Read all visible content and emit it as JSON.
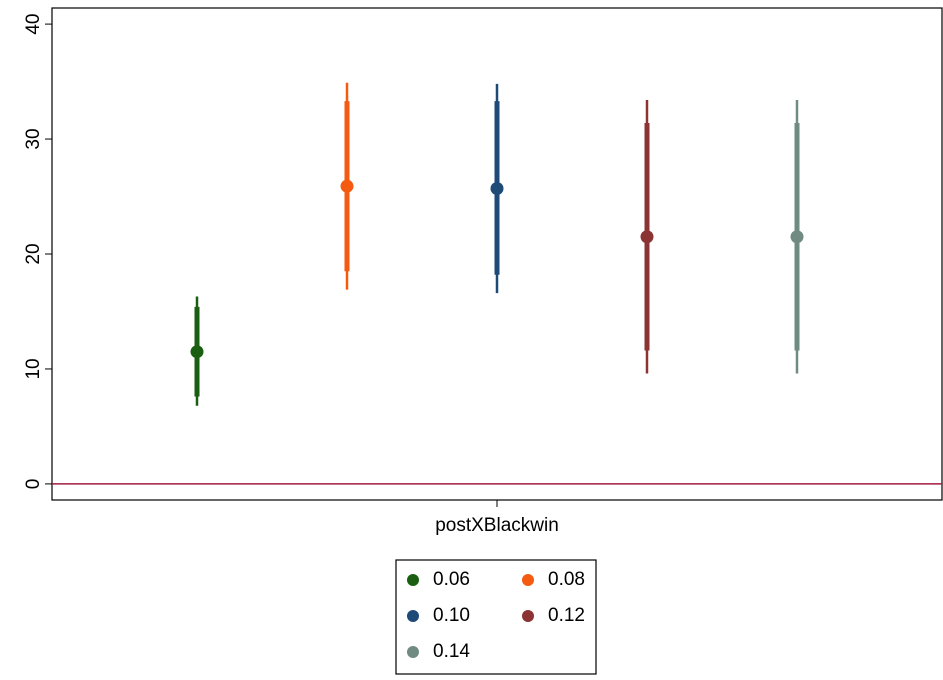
{
  "chart_data": {
    "type": "coefplot",
    "categories": [
      "postXBlackwin"
    ],
    "series": [
      {
        "name": "0.06",
        "color": "#1a5e12",
        "values": [
          11.5
        ],
        "ci_outer": [
          [
            6.8,
            16.3
          ]
        ],
        "ci_inner": [
          [
            7.6,
            15.4
          ]
        ]
      },
      {
        "name": "0.08",
        "color": "#f45a10",
        "values": [
          25.9
        ],
        "ci_outer": [
          [
            16.9,
            34.9
          ]
        ],
        "ci_inner": [
          [
            18.5,
            33.3
          ]
        ]
      },
      {
        "name": "0.10",
        "color": "#1e4a78",
        "values": [
          25.7
        ],
        "ci_outer": [
          [
            16.6,
            34.8
          ]
        ],
        "ci_inner": [
          [
            18.2,
            33.3
          ]
        ]
      },
      {
        "name": "0.12",
        "color": "#8c3434",
        "values": [
          21.5
        ],
        "ci_outer": [
          [
            9.6,
            33.4
          ]
        ],
        "ci_inner": [
          [
            11.6,
            31.4
          ]
        ]
      },
      {
        "name": "0.14",
        "color": "#708c82",
        "values": [
          21.5
        ],
        "ci_outer": [
          [
            9.6,
            33.4
          ]
        ],
        "ci_inner": [
          [
            11.6,
            31.4
          ]
        ]
      }
    ],
    "ylim": [
      -1.4,
      41.4
    ],
    "yticks": [
      0,
      10,
      20,
      30,
      40
    ],
    "refline": 0,
    "refline_color": "#a01a40",
    "legend": "bottom",
    "legend_columns": 2
  }
}
